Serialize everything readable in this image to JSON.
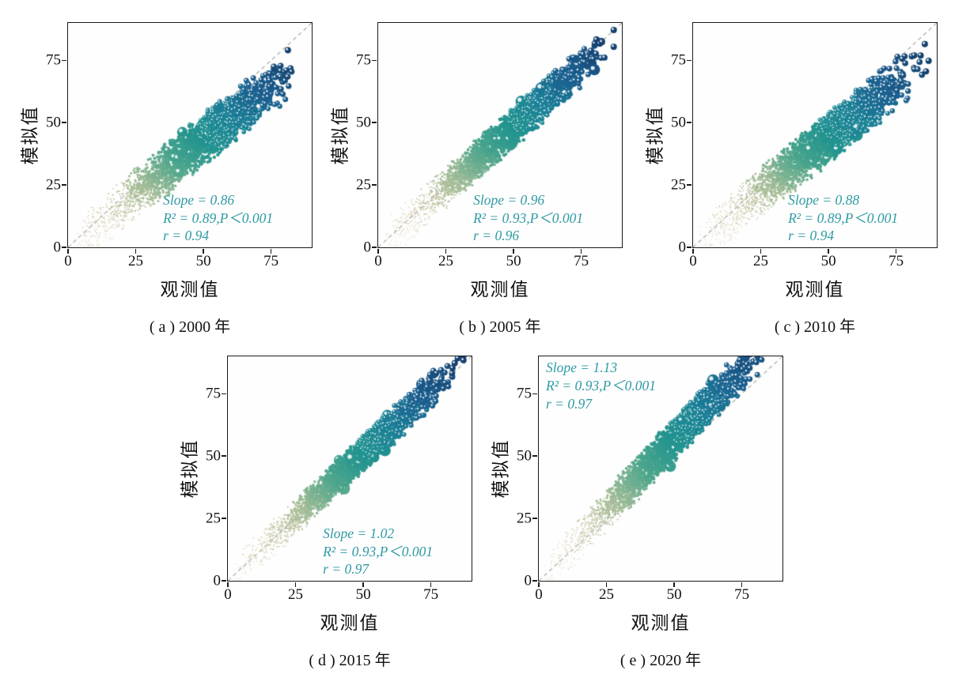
{
  "figure": {
    "description": "Five scatter subplots comparing simulated vs observed values for five years",
    "background": "#ffffff"
  },
  "style": {
    "stats_color": "#2f9aa3",
    "frame_color": "#1a1a1a",
    "identity_line_color": "#a9a9a9",
    "point_colormap": [
      {
        "t": 0.0,
        "c": "#dcd2b2"
      },
      {
        "t": 0.18,
        "c": "#cdc4a1"
      },
      {
        "t": 0.34,
        "c": "#a3bd97"
      },
      {
        "t": 0.48,
        "c": "#4aa58d"
      },
      {
        "t": 0.6,
        "c": "#219390"
      },
      {
        "t": 0.72,
        "c": "#1b8097"
      },
      {
        "t": 0.84,
        "c": "#1b6090"
      },
      {
        "t": 1.0,
        "c": "#14406e"
      }
    ]
  },
  "chart_data": [
    {
      "type": "scatter",
      "panel": "a",
      "caption": "( a ) 2000 年",
      "year": "2000",
      "xlabel": "观测值",
      "ylabel": "模拟值",
      "xlim": [
        0,
        90
      ],
      "ylim": [
        0,
        90
      ],
      "xticks": [
        "0",
        "25",
        "50",
        "75"
      ],
      "yticks": [
        "0",
        "25",
        "50",
        "75"
      ],
      "stats": {
        "slope": 0.86,
        "r2": 0.89,
        "p": "P＜0.001",
        "r": 0.94
      },
      "stats_lines": [
        "Slope = 0.86",
        "R² = 0.89,P＜0.001",
        "r = 0.94"
      ],
      "stats_position": "bottom-right",
      "identity_line": true,
      "point_cloud": {
        "n": 2600,
        "x_range": [
          1,
          87
        ],
        "y_noise_sd": 6.5,
        "seed": 11
      }
    },
    {
      "type": "scatter",
      "panel": "b",
      "caption": "( b ) 2005 年",
      "year": "2005",
      "xlabel": "观测值",
      "ylabel": "模拟值",
      "xlim": [
        0,
        90
      ],
      "ylim": [
        0,
        90
      ],
      "xticks": [
        "0",
        "25",
        "50",
        "75"
      ],
      "yticks": [
        "0",
        "25",
        "50",
        "75"
      ],
      "stats": {
        "slope": 0.96,
        "r2": 0.93,
        "p": "P＜0.001",
        "r": 0.96
      },
      "stats_lines": [
        "Slope = 0.96",
        "R² = 0.93,P＜0.001",
        "r = 0.96"
      ],
      "stats_position": "bottom-right",
      "identity_line": true,
      "point_cloud": {
        "n": 2600,
        "x_range": [
          1,
          87
        ],
        "y_noise_sd": 5.2,
        "seed": 22
      }
    },
    {
      "type": "scatter",
      "panel": "c",
      "caption": "( c ) 2010 年",
      "year": "2010",
      "xlabel": "观测值",
      "ylabel": "模拟值",
      "xlim": [
        0,
        90
      ],
      "ylim": [
        0,
        90
      ],
      "xticks": [
        "0",
        "25",
        "50",
        "75"
      ],
      "yticks": [
        "0",
        "25",
        "50",
        "75"
      ],
      "stats": {
        "slope": 0.88,
        "r2": 0.89,
        "p": "P＜0.001",
        "r": 0.94
      },
      "stats_lines": [
        "Slope = 0.88",
        "R² = 0.89,P＜0.001",
        "r = 0.94"
      ],
      "stats_position": "bottom-right",
      "identity_line": true,
      "point_cloud": {
        "n": 2600,
        "x_range": [
          1,
          87
        ],
        "y_noise_sd": 6.5,
        "seed": 33
      }
    },
    {
      "type": "scatter",
      "panel": "d",
      "caption": "( d ) 2015 年",
      "year": "2015",
      "xlabel": "观测值",
      "ylabel": "模拟值",
      "xlim": [
        0,
        90
      ],
      "ylim": [
        0,
        90
      ],
      "xticks": [
        "0",
        "25",
        "50",
        "75"
      ],
      "yticks": [
        "0",
        "25",
        "50",
        "75"
      ],
      "stats": {
        "slope": 1.02,
        "r2": 0.93,
        "p": "P＜0.001",
        "r": 0.97
      },
      "stats_lines": [
        "Slope = 1.02",
        "R² = 0.93,P＜0.001",
        "r = 0.97"
      ],
      "stats_position": "bottom-right",
      "identity_line": true,
      "point_cloud": {
        "n": 2600,
        "x_range": [
          1,
          87
        ],
        "y_noise_sd": 4.8,
        "seed": 44
      }
    },
    {
      "type": "scatter",
      "panel": "e",
      "caption": "( e ) 2020 年",
      "year": "2020",
      "xlabel": "观测值",
      "ylabel": "模拟值",
      "xlim": [
        0,
        90
      ],
      "ylim": [
        0,
        90
      ],
      "xticks": [
        "0",
        "25",
        "50",
        "75"
      ],
      "yticks": [
        "0",
        "25",
        "50",
        "75"
      ],
      "stats": {
        "slope": 1.13,
        "r2": 0.93,
        "p": "P＜0.001",
        "r": 0.97
      },
      "stats_lines": [
        "Slope = 1.13",
        "R² = 0.93,P＜0.001",
        "r = 0.97"
      ],
      "stats_position": "top-left",
      "identity_line": true,
      "point_cloud": {
        "n": 2600,
        "x_range": [
          1,
          87
        ],
        "y_noise_sd": 5.5,
        "seed": 55
      }
    }
  ]
}
